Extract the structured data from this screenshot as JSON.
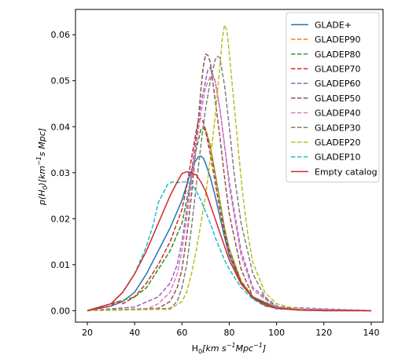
{
  "chart_data": {
    "type": "line",
    "xlabel": "H_0[km s^-1 Mpc^-1]",
    "ylabel": "p(H_0)[km^-1 s Mpc]",
    "xlim": [
      15,
      145
    ],
    "ylim": [
      -0.0025,
      0.0655
    ],
    "xticks": [
      20,
      40,
      60,
      80,
      100,
      120,
      140
    ],
    "xtick_labels": [
      "20",
      "40",
      "60",
      "80",
      "100",
      "120",
      "140"
    ],
    "yticks": [
      0.0,
      0.01,
      0.02,
      0.03,
      0.04,
      0.05,
      0.06
    ],
    "ytick_labels": [
      "0.00",
      "0.01",
      "0.02",
      "0.03",
      "0.04",
      "0.05",
      "0.06"
    ],
    "grid": false,
    "legend_position": "top-right",
    "series": [
      {
        "name": "GLADE+",
        "color": "#1f77b4",
        "dash": "solid",
        "x": [
          20,
          30,
          35,
          40,
          45,
          50,
          55,
          60,
          63,
          65,
          67,
          68,
          69,
          70,
          72,
          74,
          76,
          78,
          80,
          85,
          90,
          95,
          100,
          110,
          120,
          140
        ],
        "y": [
          0,
          0.001,
          0.002,
          0.004,
          0.008,
          0.013,
          0.018,
          0.024,
          0.029,
          0.032,
          0.0335,
          0.0336,
          0.0332,
          0.032,
          0.029,
          0.025,
          0.0205,
          0.016,
          0.012,
          0.006,
          0.003,
          0.0015,
          0.0007,
          0.0002,
          0,
          0
        ]
      },
      {
        "name": "GLADEP90",
        "color": "#ff7f0e",
        "dash": "dashed",
        "x": [
          20,
          30,
          40,
          45,
          50,
          55,
          60,
          62,
          64,
          66,
          68,
          69,
          70,
          72,
          74,
          76,
          78,
          80,
          85,
          90,
          100,
          110,
          140
        ],
        "y": [
          0,
          0.0015,
          0.003,
          0.005,
          0.009,
          0.013,
          0.019,
          0.024,
          0.029,
          0.035,
          0.0395,
          0.0398,
          0.0395,
          0.036,
          0.03,
          0.024,
          0.018,
          0.0135,
          0.0065,
          0.003,
          0.0007,
          0.0001,
          0
        ]
      },
      {
        "name": "GLADEP80",
        "color": "#2ca02c",
        "dash": "dashed",
        "x": [
          20,
          30,
          40,
          45,
          50,
          55,
          60,
          62,
          64,
          66,
          68,
          69,
          70,
          72,
          74,
          76,
          78,
          80,
          85,
          90,
          100,
          110,
          140
        ],
        "y": [
          0,
          0.0015,
          0.003,
          0.005,
          0.009,
          0.013,
          0.019,
          0.024,
          0.029,
          0.035,
          0.0393,
          0.0396,
          0.0392,
          0.0355,
          0.0298,
          0.0238,
          0.0178,
          0.0133,
          0.0063,
          0.003,
          0.0007,
          0.0001,
          0
        ]
      },
      {
        "name": "GLADEP70",
        "color": "#d62728",
        "dash": "dashed",
        "x": [
          20,
          25,
          30,
          32,
          35,
          40,
          45,
          50,
          55,
          60,
          62,
          64,
          66,
          67,
          68,
          69,
          70,
          72,
          74,
          76,
          78,
          80,
          85,
          90,
          100,
          140
        ],
        "y": [
          0,
          0.0005,
          0.001,
          0.002,
          0.0015,
          0.003,
          0.006,
          0.01,
          0.015,
          0.022,
          0.027,
          0.033,
          0.039,
          0.0415,
          0.0418,
          0.041,
          0.039,
          0.034,
          0.028,
          0.022,
          0.017,
          0.0125,
          0.006,
          0.0027,
          0.0005,
          0
        ]
      },
      {
        "name": "GLADEP60",
        "color": "#9467bd",
        "dash": "dashed",
        "x": [
          20,
          40,
          50,
          55,
          58,
          60,
          62,
          64,
          66,
          68,
          70,
          71,
          72,
          74,
          76,
          78,
          80,
          85,
          90,
          100,
          140
        ],
        "y": [
          0,
          0.0008,
          0.003,
          0.006,
          0.01,
          0.015,
          0.022,
          0.03,
          0.038,
          0.045,
          0.05,
          0.0525,
          0.0528,
          0.05,
          0.044,
          0.036,
          0.028,
          0.013,
          0.005,
          0.0008,
          0
        ]
      },
      {
        "name": "GLADEP50",
        "color": "#8c564b",
        "dash": "dashed",
        "x": [
          20,
          50,
          55,
          58,
          60,
          62,
          64,
          66,
          68,
          69,
          70,
          71,
          72,
          73,
          74,
          76,
          78,
          80,
          85,
          90,
          100,
          140
        ],
        "y": [
          0,
          0.0005,
          0.002,
          0.005,
          0.009,
          0.016,
          0.025,
          0.036,
          0.048,
          0.053,
          0.0558,
          0.0555,
          0.054,
          0.05,
          0.046,
          0.038,
          0.029,
          0.021,
          0.009,
          0.003,
          0.0004,
          0
        ]
      },
      {
        "name": "GLADEP40",
        "color": "#e377c2",
        "dash": "dashed",
        "x": [
          20,
          45,
          50,
          55,
          58,
          60,
          62,
          64,
          66,
          68,
          70,
          72,
          73,
          74,
          76,
          78,
          80,
          85,
          90,
          100,
          140
        ],
        "y": [
          0,
          0.0003,
          0.0015,
          0.004,
          0.008,
          0.013,
          0.02,
          0.028,
          0.036,
          0.043,
          0.0485,
          0.051,
          0.0512,
          0.05,
          0.044,
          0.036,
          0.027,
          0.012,
          0.0045,
          0.0006,
          0
        ]
      },
      {
        "name": "GLADEP30",
        "color": "#7f7f7f",
        "dash": "dashed",
        "x": [
          20,
          55,
          58,
          60,
          62,
          64,
          66,
          68,
          70,
          72,
          74,
          75,
          76,
          78,
          80,
          82,
          85,
          90,
          95,
          100,
          110,
          140
        ],
        "y": [
          0,
          0.0005,
          0.002,
          0.005,
          0.01,
          0.018,
          0.027,
          0.036,
          0.044,
          0.05,
          0.0545,
          0.0553,
          0.055,
          0.049,
          0.04,
          0.03,
          0.019,
          0.008,
          0.003,
          0.001,
          0.0001,
          0
        ]
      },
      {
        "name": "GLADEP20",
        "color": "#bcbd22",
        "dash": "dashed",
        "x": [
          20,
          55,
          60,
          62,
          64,
          66,
          68,
          70,
          72,
          74,
          76,
          77,
          78,
          79,
          80,
          82,
          84,
          86,
          88,
          90,
          95,
          100,
          110,
          120,
          140
        ],
        "y": [
          0,
          0.0003,
          0.002,
          0.004,
          0.008,
          0.013,
          0.019,
          0.025,
          0.033,
          0.042,
          0.053,
          0.059,
          0.0621,
          0.061,
          0.056,
          0.045,
          0.034,
          0.024,
          0.016,
          0.0105,
          0.004,
          0.0015,
          0.0002,
          0,
          0
        ]
      },
      {
        "name": "GLADEP10",
        "color": "#17becf",
        "dash": "dashed",
        "x": [
          20,
          30,
          35,
          40,
          45,
          48,
          50,
          52,
          54,
          56,
          58,
          60,
          62,
          64,
          66,
          68,
          70,
          72,
          74,
          76,
          78,
          80,
          85,
          90,
          95,
          100,
          110,
          140
        ],
        "y": [
          0,
          0.0015,
          0.004,
          0.008,
          0.014,
          0.019,
          0.0235,
          0.0255,
          0.0275,
          0.028,
          0.0278,
          0.028,
          0.028,
          0.0275,
          0.026,
          0.024,
          0.0215,
          0.019,
          0.016,
          0.0135,
          0.011,
          0.009,
          0.005,
          0.0025,
          0.001,
          0.0005,
          0.0001,
          0
        ]
      },
      {
        "name": "Empty catalog",
        "color": "#d62728",
        "dash": "solid",
        "x": [
          20,
          30,
          35,
          40,
          45,
          50,
          55,
          58,
          60,
          62,
          64,
          66,
          68,
          70,
          72,
          74,
          76,
          78,
          80,
          85,
          90,
          95,
          100,
          110,
          120,
          140
        ],
        "y": [
          0,
          0.0015,
          0.004,
          0.008,
          0.013,
          0.019,
          0.025,
          0.028,
          0.0298,
          0.0302,
          0.03,
          0.0295,
          0.028,
          0.026,
          0.023,
          0.02,
          0.017,
          0.014,
          0.011,
          0.0058,
          0.0028,
          0.0012,
          0.0005,
          0.0001,
          0,
          0
        ]
      }
    ]
  }
}
